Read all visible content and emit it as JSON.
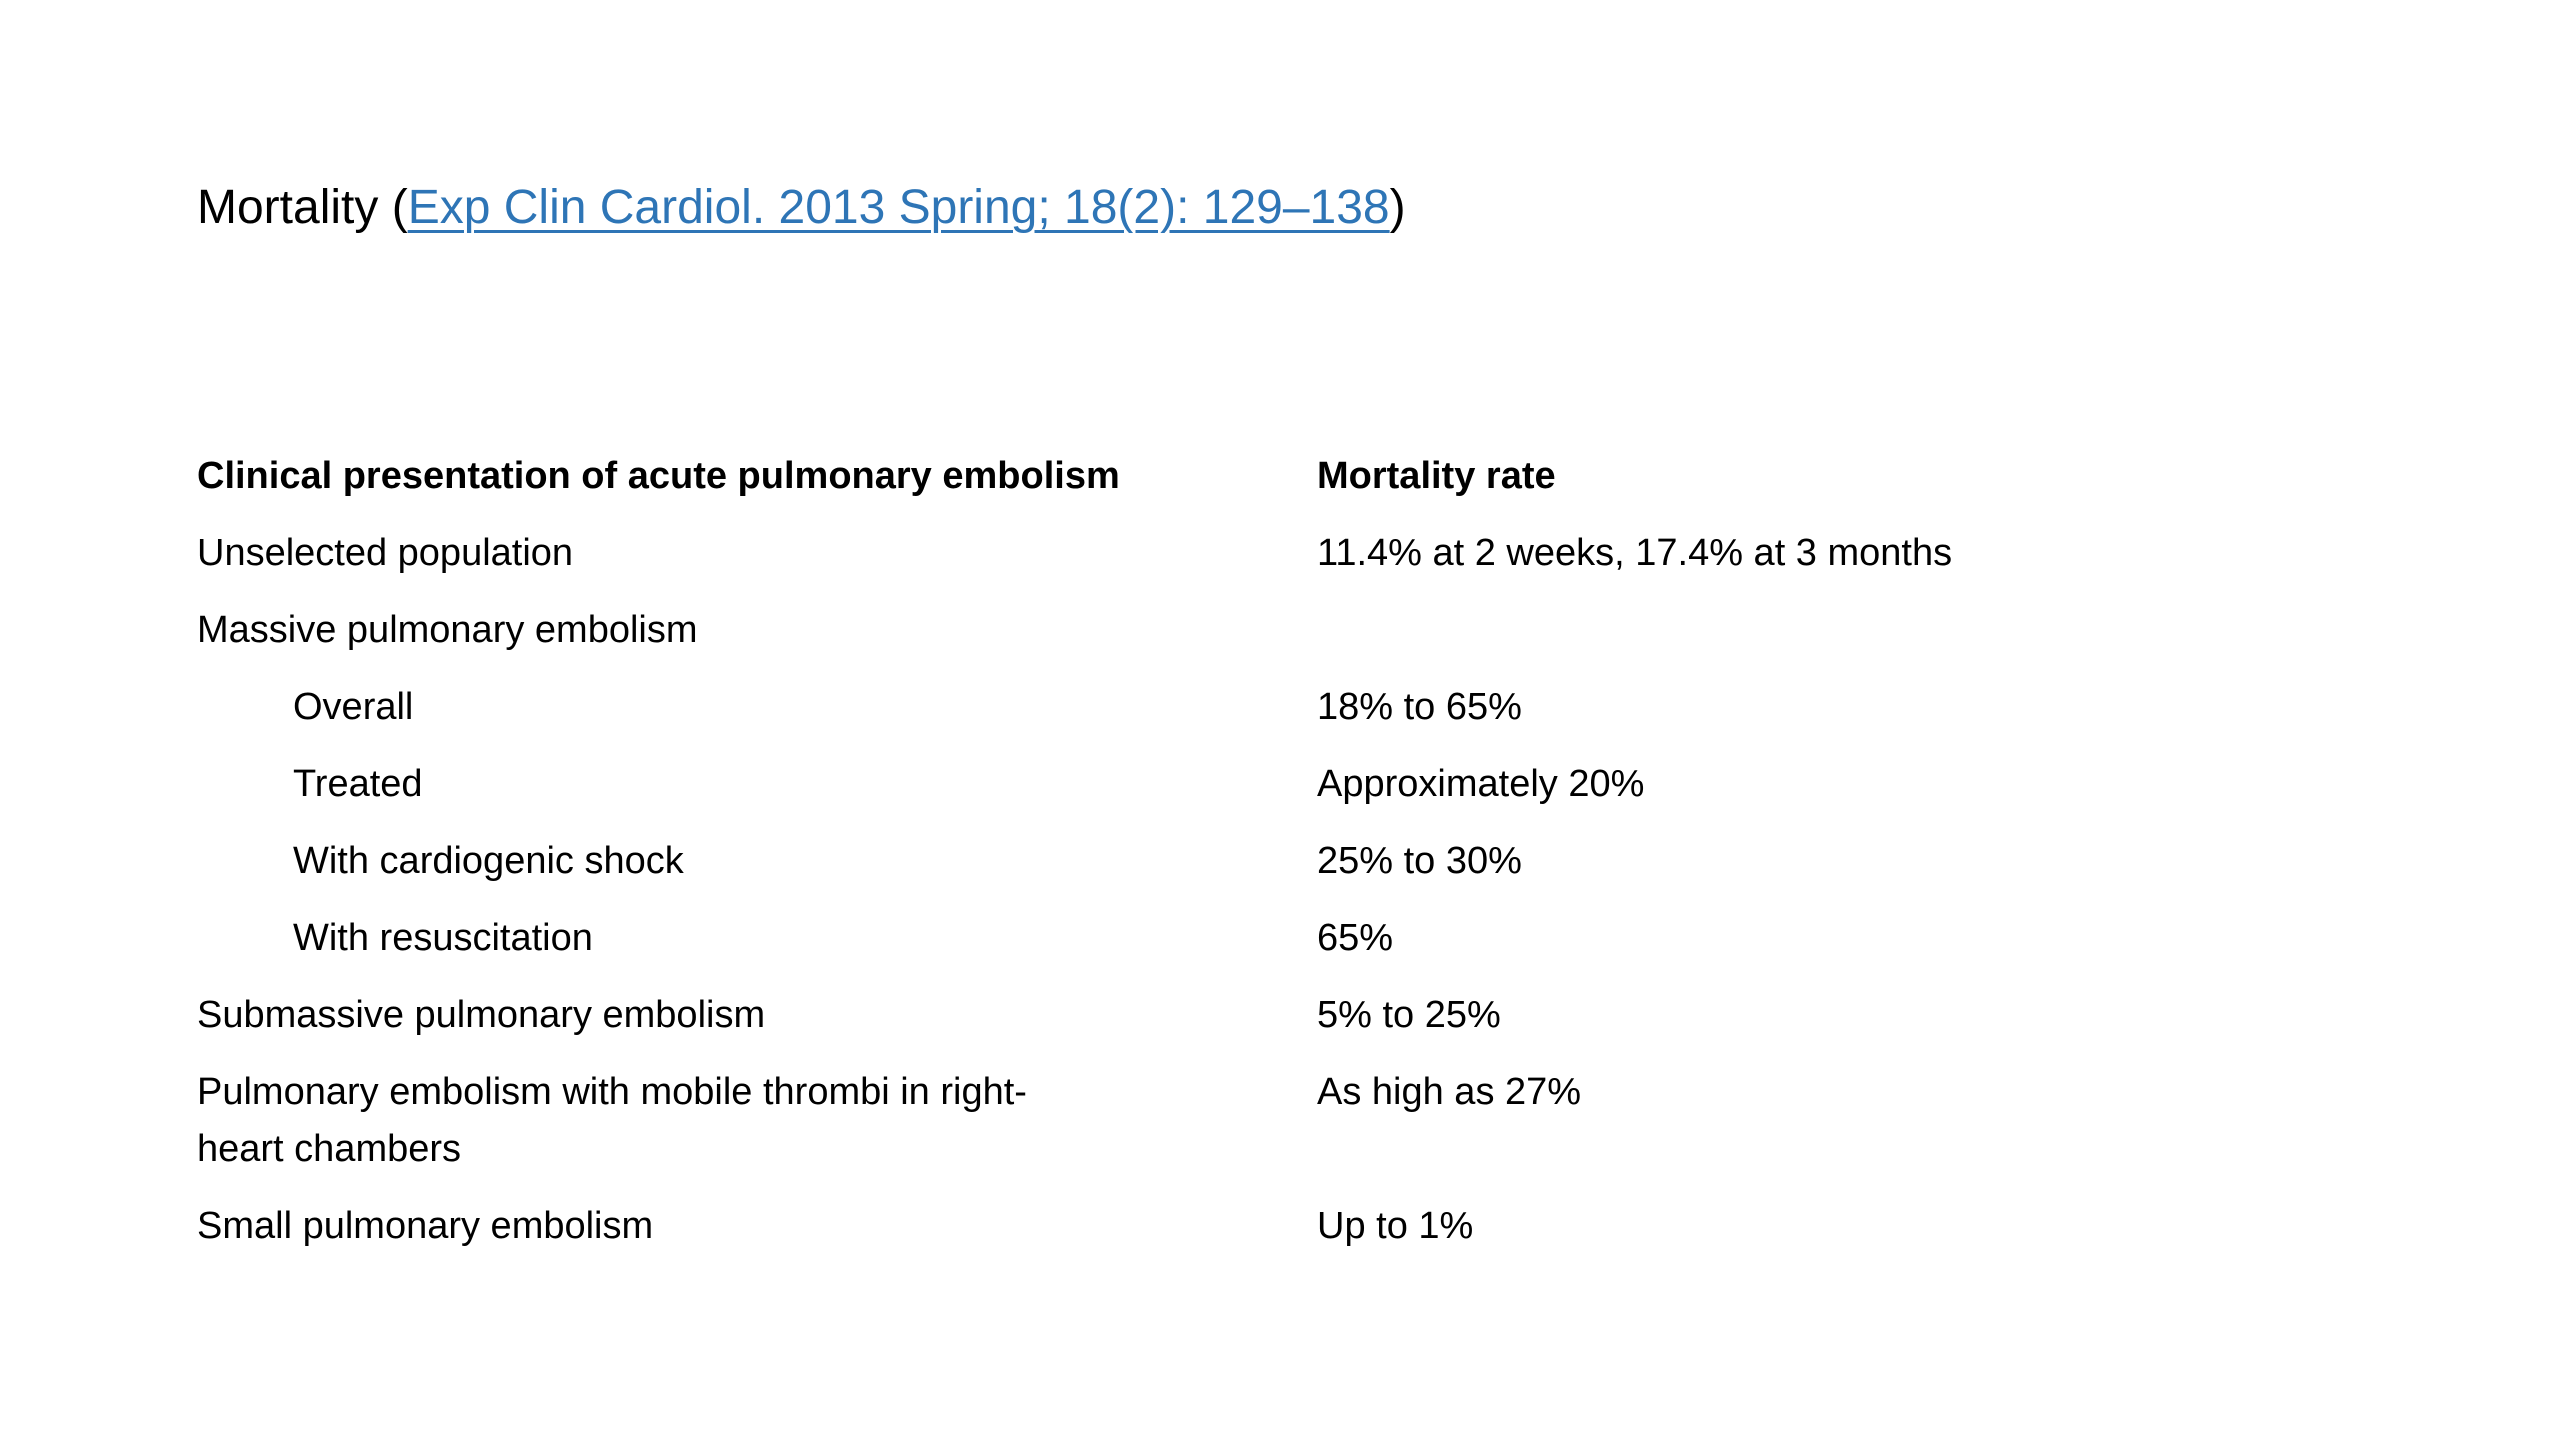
{
  "page": {
    "background_color": "#ffffff",
    "text_color": "#000000",
    "link_color": "#2E75B6"
  },
  "title": {
    "prefix": "Mortality (",
    "link_text": "Exp Clin Cardiol. 2013 Spring; 18(2): 129–138",
    "suffix": ")"
  },
  "table": {
    "headers": {
      "presentation": "Clinical presentation of acute pulmonary embolism",
      "mortality_rate": "Mortality rate"
    },
    "rows": [
      {
        "label": "Unselected population",
        "value": "11.4% at 2 weeks, 17.4% at 3 months",
        "indent": false
      },
      {
        "label": "Massive pulmonary embolism",
        "value": "",
        "indent": false
      },
      {
        "label": "Overall",
        "value": "18% to 65%",
        "indent": true
      },
      {
        "label": "Treated",
        "value": "Approximately 20%",
        "indent": true
      },
      {
        "label": "With cardiogenic shock",
        "value": "25% to 30%",
        "indent": true
      },
      {
        "label": "With resuscitation",
        "value": "65%",
        "indent": true
      },
      {
        "label": "Submassive pulmonary embolism",
        "value": "5% to 25%",
        "indent": false
      },
      {
        "label": "Pulmonary embolism with mobile thrombi in right-\nheart chambers",
        "value": "As high as 27%",
        "indent": false
      },
      {
        "label": "Small pulmonary embolism",
        "value": "Up to 1%",
        "indent": false
      }
    ]
  }
}
